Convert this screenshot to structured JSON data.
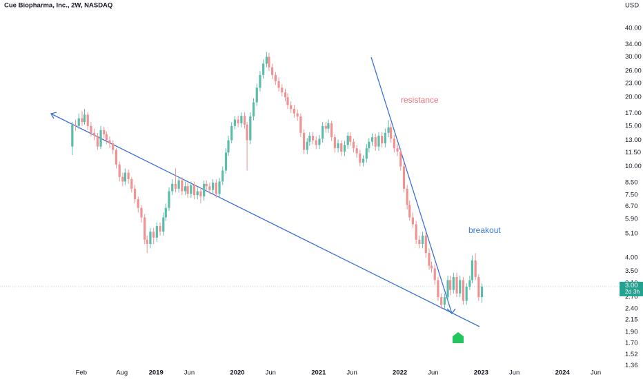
{
  "chart_data": {
    "type": "candlestick",
    "title": "Cue Biopharma, Inc., 2W, NASDAQ",
    "currency": "USD",
    "log_scale": true,
    "grid": false,
    "up_color": "#5bbcab",
    "down_color": "#ef9292",
    "line_color": "#3a6fd8",
    "x": [
      2017.97,
      2018.01,
      2018.05,
      2018.09,
      2018.12,
      2018.16,
      2018.2,
      2018.24,
      2018.28,
      2018.32,
      2018.36,
      2018.39,
      2018.43,
      2018.47,
      2018.51,
      2018.55,
      2018.59,
      2018.62,
      2018.66,
      2018.7,
      2018.74,
      2018.78,
      2018.82,
      2018.86,
      2018.89,
      2018.93,
      2018.97,
      2019.01,
      2019.05,
      2019.09,
      2019.12,
      2019.16,
      2019.2,
      2019.24,
      2019.28,
      2019.32,
      2019.36,
      2019.39,
      2019.43,
      2019.47,
      2019.51,
      2019.55,
      2019.59,
      2019.62,
      2019.66,
      2019.7,
      2019.74,
      2019.78,
      2019.82,
      2019.86,
      2019.89,
      2019.93,
      2019.97,
      2020.01,
      2020.05,
      2020.09,
      2020.12,
      2020.16,
      2020.2,
      2020.24,
      2020.28,
      2020.32,
      2020.36,
      2020.39,
      2020.43,
      2020.47,
      2020.51,
      2020.55,
      2020.59,
      2020.62,
      2020.66,
      2020.7,
      2020.74,
      2020.78,
      2020.82,
      2020.86,
      2020.89,
      2020.93,
      2020.97,
      2021.01,
      2021.05,
      2021.09,
      2021.12,
      2021.16,
      2021.2,
      2021.24,
      2021.28,
      2021.32,
      2021.36,
      2021.39,
      2021.43,
      2021.47,
      2021.51,
      2021.55,
      2021.59,
      2021.62,
      2021.66,
      2021.7,
      2021.74,
      2021.78,
      2021.82,
      2021.86,
      2021.89,
      2021.93,
      2021.97,
      2022.01,
      2022.05,
      2022.09,
      2022.12,
      2022.16,
      2022.2,
      2022.24,
      2022.28,
      2022.32,
      2022.36,
      2022.39,
      2022.43,
      2022.47,
      2022.51,
      2022.55,
      2022.59,
      2022.62,
      2022.66,
      2022.7,
      2022.74,
      2022.78,
      2022.82,
      2022.86,
      2022.89,
      2022.93,
      2022.97,
      2023.01
    ],
    "open": [
      12.2,
      15.2,
      15.0,
      16.2,
      15.6,
      16.8,
      15.0,
      14.0,
      13.6,
      12.2,
      14.4,
      13.8,
      13.0,
      12.6,
      11.8,
      10.2,
      9.0,
      8.6,
      9.4,
      8.8,
      8.0,
      7.2,
      6.6,
      6.0,
      4.8,
      4.6,
      5.2,
      4.9,
      5.5,
      5.2,
      6.0,
      6.6,
      7.8,
      8.4,
      8.0,
      8.7,
      7.8,
      8.2,
      7.6,
      8.3,
      7.5,
      7.8,
      7.4,
      8.4,
      8.2,
      7.9,
      8.5,
      7.6,
      8.6,
      9.6,
      11.5,
      13.0,
      15.0,
      16.0,
      15.4,
      16.6,
      15.2,
      13.0,
      16.5,
      19.0,
      22.0,
      25.0,
      28.0,
      30.0,
      27.0,
      25.0,
      23.5,
      22.0,
      21.0,
      20.0,
      18.5,
      17.8,
      17.0,
      16.5,
      14.0,
      11.8,
      12.8,
      13.6,
      13.0,
      12.4,
      13.2,
      15.0,
      14.6,
      15.4,
      13.4,
      12.0,
      12.6,
      11.6,
      12.4,
      13.6,
      12.8,
      12.0,
      11.4,
      10.4,
      10.8,
      12.0,
      12.8,
      13.4,
      12.2,
      13.6,
      12.6,
      14.0,
      14.8,
      13.2,
      12.0,
      11.6,
      10.0,
      8.0,
      6.8,
      6.0,
      5.6,
      4.8,
      4.6,
      5.0,
      4.2,
      3.7,
      3.6,
      3.2,
      2.7,
      2.5,
      2.7,
      3.2,
      2.9,
      3.3,
      2.8,
      3.2,
      2.6,
      3.0,
      3.2,
      3.9,
      3.3,
      2.7
    ],
    "high": [
      15.6,
      16.0,
      17.0,
      17.4,
      17.8,
      17.2,
      15.6,
      14.6,
      14.0,
      15.0,
      14.9,
      14.2,
      13.5,
      13.0,
      12.0,
      10.5,
      9.4,
      9.8,
      9.7,
      9.0,
      8.3,
      7.4,
      6.8,
      6.2,
      5.0,
      5.4,
      5.4,
      5.7,
      5.7,
      6.3,
      6.9,
      8.1,
      8.8,
      9.8,
      9.0,
      9.0,
      8.6,
      8.5,
      8.6,
      8.6,
      8.1,
      8.1,
      8.7,
      8.7,
      8.5,
      8.8,
      8.8,
      8.9,
      10.0,
      12.0,
      13.6,
      15.6,
      16.6,
      16.6,
      17.2,
      17.2,
      15.6,
      17.2,
      19.8,
      22.9,
      26.0,
      29.2,
      31.5,
      31.2,
      28.0,
      25.8,
      24.4,
      22.8,
      21.8,
      20.8,
      19.2,
      18.5,
      17.7,
      17.0,
      14.5,
      13.3,
      14.1,
      14.1,
      13.5,
      13.7,
      15.6,
      15.6,
      16.0,
      15.8,
      13.8,
      13.1,
      13.0,
      12.9,
      14.1,
      14.1,
      13.2,
      12.4,
      11.8,
      11.2,
      12.5,
      13.3,
      13.9,
      13.9,
      14.1,
      14.1,
      14.6,
      15.9,
      15.4,
      13.7,
      12.5,
      12.0,
      10.4,
      8.3,
      7.1,
      6.3,
      5.8,
      5.0,
      5.2,
      5.2,
      4.4,
      3.85,
      3.75,
      3.3,
      2.8,
      2.8,
      3.35,
      3.35,
      3.45,
      3.45,
      3.35,
      3.3,
      3.1,
      3.35,
      4.1,
      4.2,
      3.4,
      3.1
    ],
    "low": [
      11.2,
      14.3,
      14.6,
      15.0,
      15.2,
      14.4,
      13.5,
      13.0,
      11.8,
      11.9,
      13.2,
      12.5,
      12.0,
      11.3,
      9.8,
      8.6,
      8.2,
      8.3,
      8.4,
      7.7,
      6.9,
      6.3,
      5.7,
      4.6,
      4.2,
      4.4,
      4.6,
      4.7,
      5.0,
      5.0,
      5.8,
      6.4,
      7.5,
      7.7,
      7.7,
      7.5,
      7.5,
      7.3,
      7.3,
      7.2,
      7.2,
      6.9,
      7.1,
      7.9,
      7.6,
      7.6,
      7.3,
      7.3,
      8.3,
      9.3,
      11.1,
      12.6,
      14.5,
      14.8,
      14.8,
      14.6,
      9.6,
      12.5,
      15.9,
      18.3,
      21.2,
      24.1,
      27.0,
      26.0,
      24.0,
      22.6,
      21.2,
      20.2,
      19.2,
      17.8,
      17.1,
      16.3,
      15.8,
      13.4,
      11.3,
      11.3,
      12.3,
      12.5,
      11.9,
      11.9,
      12.7,
      14.0,
      14.0,
      12.9,
      11.5,
      11.5,
      11.1,
      11.1,
      11.9,
      12.3,
      11.5,
      10.9,
      10.0,
      10.0,
      10.4,
      11.5,
      12.3,
      11.7,
      11.7,
      12.1,
      12.1,
      13.4,
      12.7,
      11.5,
      11.1,
      9.6,
      7.7,
      6.5,
      5.8,
      5.4,
      4.6,
      4.4,
      4.4,
      4.0,
      3.55,
      3.45,
      3.05,
      2.6,
      2.4,
      2.4,
      2.6,
      2.75,
      2.8,
      2.7,
      2.7,
      2.5,
      2.5,
      2.9,
      3.1,
      3.2,
      2.6,
      2.55
    ],
    "close": [
      15.2,
      15.0,
      16.2,
      15.6,
      16.8,
      15.0,
      14.0,
      13.6,
      12.2,
      14.4,
      13.8,
      13.0,
      12.6,
      11.8,
      10.2,
      9.0,
      8.6,
      9.4,
      8.8,
      8.0,
      7.2,
      6.6,
      6.0,
      4.8,
      4.6,
      5.2,
      4.9,
      5.5,
      5.2,
      6.0,
      6.6,
      7.8,
      8.4,
      8.0,
      8.7,
      7.8,
      8.2,
      7.6,
      8.3,
      7.5,
      7.8,
      7.4,
      8.4,
      8.2,
      7.9,
      8.5,
      7.6,
      8.6,
      9.6,
      11.5,
      13.0,
      15.0,
      16.0,
      15.4,
      16.6,
      15.2,
      13.0,
      16.5,
      19.0,
      22.0,
      25.0,
      28.0,
      30.0,
      27.0,
      25.0,
      23.5,
      22.0,
      21.0,
      20.0,
      18.5,
      17.8,
      17.0,
      16.5,
      14.0,
      11.8,
      12.8,
      13.6,
      13.0,
      12.4,
      13.2,
      15.0,
      14.6,
      15.4,
      13.4,
      12.0,
      12.6,
      11.6,
      12.4,
      13.6,
      12.8,
      12.0,
      11.4,
      10.4,
      10.8,
      12.0,
      12.8,
      13.4,
      12.2,
      13.6,
      12.6,
      14.0,
      14.8,
      13.2,
      12.0,
      11.6,
      10.0,
      8.0,
      6.8,
      6.0,
      5.6,
      4.8,
      4.6,
      5.0,
      4.2,
      3.7,
      3.6,
      3.2,
      2.7,
      2.5,
      2.7,
      3.2,
      2.9,
      3.3,
      2.8,
      3.2,
      2.6,
      3.0,
      3.2,
      3.9,
      3.3,
      2.7,
      3.0
    ],
    "xlim": [
      2017.08,
      2024.72
    ],
    "xticks": [
      {
        "value": 2018.08,
        "label": "Feb"
      },
      {
        "value": 2018.58,
        "label": "Aug"
      },
      2019,
      {
        "value": 2019.41,
        "label": "Jun"
      },
      2020,
      {
        "value": 2020.41,
        "label": "Jun"
      },
      2021,
      {
        "value": 2021.41,
        "label": "Jun"
      },
      2022,
      {
        "value": 2022.41,
        "label": "Jun"
      },
      2023,
      {
        "value": 2023.41,
        "label": "Jun"
      },
      2024,
      {
        "value": 2024.41,
        "label": "Jun"
      }
    ],
    "ylim": [
      1.3,
      53
    ],
    "yticks": [
      {
        "value": 40,
        "label": "40.00"
      },
      {
        "value": 34,
        "label": "34.00"
      },
      {
        "value": 30,
        "label": "30.00"
      },
      {
        "value": 26,
        "label": "26.00"
      },
      {
        "value": 23,
        "label": "23.00"
      },
      {
        "value": 20,
        "label": "20.00"
      },
      {
        "value": 17,
        "label": "17.00"
      },
      {
        "value": 15,
        "label": "15.00"
      },
      {
        "value": 13,
        "label": "13.00"
      },
      {
        "value": 11.5,
        "label": "11.50"
      },
      {
        "value": 10,
        "label": "10.00"
      },
      {
        "value": 8.5,
        "label": "8.50"
      },
      {
        "value": 7.5,
        "label": "7.50"
      },
      {
        "value": 6.7,
        "label": "6.70"
      },
      {
        "value": 5.9,
        "label": "5.90"
      },
      {
        "value": 5.1,
        "label": "5.10"
      },
      {
        "value": 4,
        "label": "4.00"
      },
      {
        "value": 3.5,
        "label": "3.50"
      },
      {
        "value": 3.1,
        "label": "3.10"
      },
      {
        "value": 2.7,
        "label": "2.70"
      },
      {
        "value": 2.4,
        "label": "2.40"
      },
      {
        "value": 2.15,
        "label": "2.15"
      },
      {
        "value": 1.9,
        "label": "1.90"
      },
      {
        "value": 1.7,
        "label": "1.70"
      },
      {
        "value": 1.52,
        "label": "1.52"
      },
      {
        "value": 1.36,
        "label": "1.36"
      }
    ],
    "current_price": {
      "value": 3.0,
      "label": "3.00",
      "color": "#22a28f"
    },
    "countdown": "2d 3h",
    "annotations": [
      {
        "text": "resistance",
        "color": "#e8727e"
      },
      {
        "text": "breakout",
        "color": "#3a78d8"
      }
    ]
  }
}
